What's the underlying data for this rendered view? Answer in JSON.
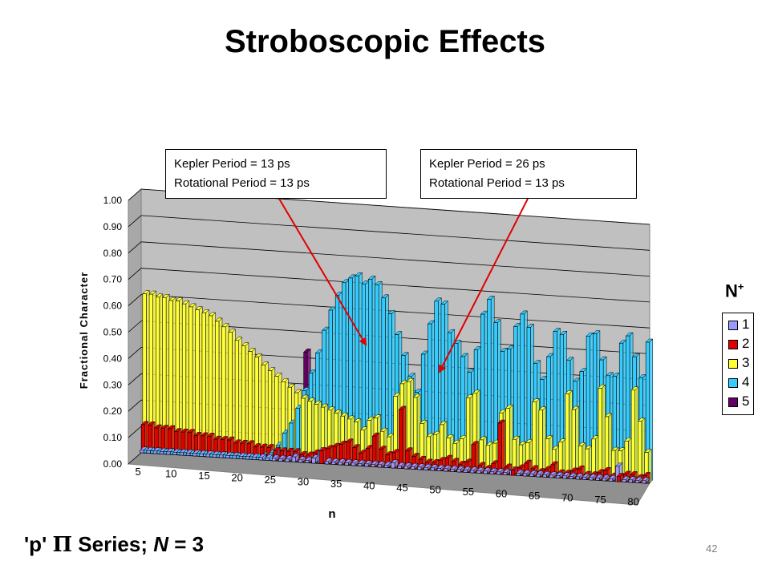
{
  "slide": {
    "title": "Stroboscopic Effects",
    "series_label": {
      "prefix": "'p' ",
      "pi": "Π",
      "middle": " Series; ",
      "n_var": "N",
      "suffix": " = 3"
    },
    "page_number": "42"
  },
  "callouts": [
    {
      "line1": "Kepler Period = 13 ps",
      "line2": "Rotational Period = 13 ps"
    },
    {
      "line1": "Kepler Period = 26 ps",
      "line2": "Rotational Period = 13 ps"
    }
  ],
  "legend": {
    "title": "N",
    "title_sup": "+",
    "items": [
      {
        "label": "1",
        "color": "#9999ff"
      },
      {
        "label": "2",
        "color": "#e00000"
      },
      {
        "label": "3",
        "color": "#ffff33"
      },
      {
        "label": "4",
        "color": "#33ccff"
      },
      {
        "label": "5",
        "color": "#660066"
      }
    ]
  },
  "chart_data": {
    "type": "bar",
    "xlabel": "n",
    "ylabel": "Fractional Character",
    "ylim": [
      0,
      1
    ],
    "y_ticks": [
      "0.00",
      "0.10",
      "0.20",
      "0.30",
      "0.40",
      "0.50",
      "0.60",
      "0.70",
      "0.80",
      "0.90",
      "1.00"
    ],
    "x_ticks": [
      "5",
      "10",
      "15",
      "20",
      "25",
      "30",
      "35",
      "40",
      "45",
      "50",
      "55",
      "60",
      "65",
      "70",
      "75",
      "80"
    ],
    "x": [
      5,
      6,
      7,
      8,
      9,
      10,
      11,
      12,
      13,
      14,
      15,
      16,
      17,
      18,
      19,
      20,
      21,
      22,
      23,
      24,
      25,
      26,
      27,
      28,
      29,
      30,
      31,
      32,
      33,
      34,
      35,
      36,
      37,
      38,
      39,
      40,
      41,
      42,
      43,
      44,
      45,
      46,
      47,
      48,
      49,
      50,
      51,
      52,
      53,
      54,
      55,
      56,
      57,
      58,
      59,
      60,
      61,
      62,
      63,
      64,
      65,
      66,
      67,
      68,
      69,
      70,
      71,
      72,
      73,
      74,
      75,
      76,
      77,
      78,
      79,
      80,
      81
    ],
    "series": [
      {
        "name": "1",
        "color": "#9999ff",
        "values": [
          0.01,
          0.01,
          0.01,
          0.01,
          0.01,
          0.01,
          0.01,
          0.01,
          0.01,
          0.01,
          0.01,
          0.01,
          0.01,
          0.01,
          0.01,
          0.01,
          0.01,
          0.01,
          0.01,
          0.01,
          0.01,
          0.01,
          0.01,
          0.02,
          0.01,
          0.01,
          0.02,
          0.05,
          0.01,
          0.01,
          0.01,
          0.01,
          0.01,
          0.01,
          0.01,
          0.01,
          0.01,
          0.01,
          0.02,
          0.01,
          0.01,
          0.01,
          0.01,
          0.01,
          0.01,
          0.01,
          0.01,
          0.01,
          0.01,
          0.01,
          0.01,
          0.01,
          0.01,
          0.01,
          0.01,
          0.01,
          0.02,
          0.01,
          0.01,
          0.01,
          0.01,
          0.01,
          0.01,
          0.01,
          0.01,
          0.01,
          0.01,
          0.01,
          0.01,
          0.01,
          0.01,
          0.01,
          0.06,
          0.01,
          0.01,
          0.01,
          0.01
        ]
      },
      {
        "name": "2",
        "color": "#e00000",
        "values": [
          0.11,
          0.11,
          0.1,
          0.1,
          0.1,
          0.09,
          0.09,
          0.09,
          0.08,
          0.08,
          0.08,
          0.07,
          0.07,
          0.07,
          0.06,
          0.06,
          0.06,
          0.05,
          0.05,
          0.05,
          0.04,
          0.04,
          0.04,
          0.04,
          0.03,
          0.03,
          0.04,
          0.05,
          0.06,
          0.07,
          0.08,
          0.09,
          0.07,
          0.05,
          0.07,
          0.12,
          0.07,
          0.05,
          0.06,
          0.23,
          0.07,
          0.05,
          0.04,
          0.03,
          0.03,
          0.04,
          0.05,
          0.04,
          0.03,
          0.04,
          0.11,
          0.03,
          0.02,
          0.04,
          0.2,
          0.03,
          0.02,
          0.03,
          0.05,
          0.03,
          0.02,
          0.03,
          0.05,
          0.02,
          0.02,
          0.03,
          0.04,
          0.02,
          0.02,
          0.03,
          0.04,
          0.02,
          0.02,
          0.03,
          0.03,
          0.02,
          0.03
        ]
      },
      {
        "name": "3",
        "color": "#ffff33",
        "values": [
          0.62,
          0.62,
          0.61,
          0.61,
          0.6,
          0.6,
          0.59,
          0.58,
          0.57,
          0.56,
          0.55,
          0.53,
          0.51,
          0.49,
          0.46,
          0.44,
          0.42,
          0.4,
          0.37,
          0.35,
          0.33,
          0.31,
          0.29,
          0.27,
          0.25,
          0.24,
          0.23,
          0.22,
          0.21,
          0.2,
          0.19,
          0.18,
          0.17,
          0.14,
          0.18,
          0.19,
          0.14,
          0.12,
          0.28,
          0.33,
          0.34,
          0.28,
          0.18,
          0.13,
          0.14,
          0.18,
          0.13,
          0.11,
          0.13,
          0.29,
          0.31,
          0.13,
          0.11,
          0.12,
          0.24,
          0.26,
          0.14,
          0.12,
          0.13,
          0.29,
          0.26,
          0.15,
          0.11,
          0.14,
          0.33,
          0.27,
          0.13,
          0.12,
          0.16,
          0.36,
          0.25,
          0.12,
          0.12,
          0.16,
          0.36,
          0.24,
          0.12
        ]
      },
      {
        "name": "4",
        "color": "#33ccff",
        "values": [
          0.01,
          0.01,
          0.01,
          0.01,
          0.01,
          0.01,
          0.01,
          0.01,
          0.01,
          0.01,
          0.01,
          0.01,
          0.01,
          0.01,
          0.01,
          0.01,
          0.01,
          0.01,
          0.02,
          0.03,
          0.06,
          0.11,
          0.15,
          0.21,
          0.28,
          0.35,
          0.43,
          0.52,
          0.6,
          0.66,
          0.71,
          0.73,
          0.74,
          0.71,
          0.73,
          0.71,
          0.66,
          0.6,
          0.52,
          0.44,
          0.36,
          0.3,
          0.45,
          0.57,
          0.66,
          0.65,
          0.54,
          0.5,
          0.45,
          0.39,
          0.48,
          0.62,
          0.68,
          0.59,
          0.48,
          0.49,
          0.58,
          0.63,
          0.58,
          0.44,
          0.38,
          0.47,
          0.57,
          0.56,
          0.46,
          0.38,
          0.42,
          0.56,
          0.57,
          0.47,
          0.41,
          0.41,
          0.54,
          0.57,
          0.49,
          0.41,
          0.55
        ]
      },
      {
        "name": "5",
        "color": "#660066",
        "values": [
          0,
          0,
          0,
          0,
          0,
          0,
          0,
          0,
          0,
          0,
          0,
          0,
          0,
          0,
          0,
          0,
          0,
          0,
          0,
          0,
          0,
          0,
          0,
          0,
          0.43,
          0,
          0,
          0,
          0,
          0,
          0,
          0,
          0,
          0,
          0,
          0,
          0,
          0,
          0,
          0,
          0,
          0,
          0,
          0,
          0,
          0,
          0,
          0,
          0,
          0,
          0,
          0,
          0,
          0,
          0,
          0,
          0,
          0,
          0,
          0,
          0,
          0,
          0,
          0,
          0,
          0,
          0,
          0,
          0,
          0,
          0,
          0,
          0,
          0,
          0,
          0,
          0
        ]
      }
    ],
    "annotations": [
      {
        "text_ref": "callouts.0",
        "target_n": 42
      },
      {
        "text_ref": "callouts.1",
        "target_n": 55
      }
    ],
    "grid": true,
    "legend_position": "right"
  }
}
